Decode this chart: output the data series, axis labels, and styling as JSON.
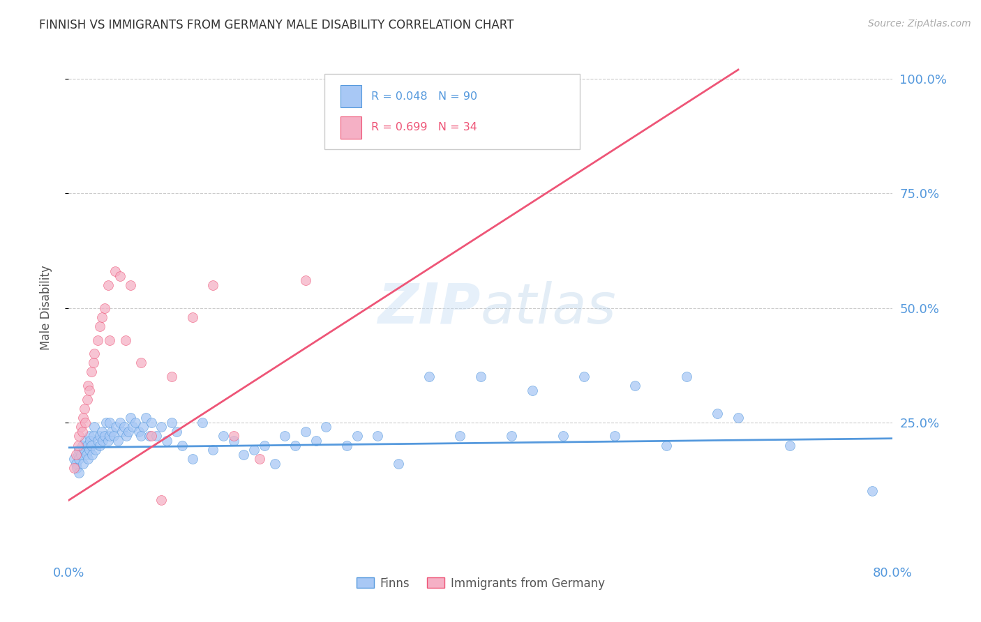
{
  "title": "FINNISH VS IMMIGRANTS FROM GERMANY MALE DISABILITY CORRELATION CHART",
  "source": "Source: ZipAtlas.com",
  "ylabel": "Male Disability",
  "watermark": "ZIPatlas",
  "finns_R": 0.048,
  "finns_N": 90,
  "germany_R": 0.699,
  "germany_N": 34,
  "xlim": [
    0.0,
    0.8
  ],
  "ylim": [
    -0.05,
    1.05
  ],
  "color_finns": "#a8c8f5",
  "color_germany": "#f5b0c5",
  "color_line_finns": "#5599dd",
  "color_line_germany": "#ee5577",
  "finns_x": [
    0.005,
    0.007,
    0.008,
    0.009,
    0.01,
    0.01,
    0.01,
    0.012,
    0.013,
    0.014,
    0.015,
    0.016,
    0.017,
    0.018,
    0.019,
    0.02,
    0.02,
    0.021,
    0.022,
    0.023,
    0.024,
    0.025,
    0.026,
    0.028,
    0.03,
    0.03,
    0.032,
    0.033,
    0.035,
    0.036,
    0.038,
    0.04,
    0.04,
    0.042,
    0.044,
    0.046,
    0.048,
    0.05,
    0.052,
    0.054,
    0.056,
    0.058,
    0.06,
    0.062,
    0.065,
    0.068,
    0.07,
    0.072,
    0.075,
    0.078,
    0.08,
    0.085,
    0.09,
    0.095,
    0.1,
    0.105,
    0.11,
    0.12,
    0.13,
    0.14,
    0.15,
    0.16,
    0.17,
    0.18,
    0.19,
    0.2,
    0.21,
    0.22,
    0.23,
    0.24,
    0.25,
    0.27,
    0.28,
    0.3,
    0.32,
    0.35,
    0.38,
    0.4,
    0.43,
    0.45,
    0.48,
    0.5,
    0.53,
    0.55,
    0.58,
    0.6,
    0.63,
    0.65,
    0.7,
    0.78
  ],
  "finns_y": [
    0.17,
    0.16,
    0.15,
    0.18,
    0.19,
    0.17,
    0.14,
    0.18,
    0.2,
    0.16,
    0.19,
    0.21,
    0.18,
    0.2,
    0.17,
    0.22,
    0.19,
    0.21,
    0.2,
    0.18,
    0.22,
    0.24,
    0.19,
    0.21,
    0.22,
    0.2,
    0.23,
    0.21,
    0.22,
    0.25,
    0.21,
    0.25,
    0.22,
    0.23,
    0.22,
    0.24,
    0.21,
    0.25,
    0.23,
    0.24,
    0.22,
    0.23,
    0.26,
    0.24,
    0.25,
    0.23,
    0.22,
    0.24,
    0.26,
    0.22,
    0.25,
    0.22,
    0.24,
    0.21,
    0.25,
    0.23,
    0.2,
    0.17,
    0.25,
    0.19,
    0.22,
    0.21,
    0.18,
    0.19,
    0.2,
    0.16,
    0.22,
    0.2,
    0.23,
    0.21,
    0.24,
    0.2,
    0.22,
    0.22,
    0.16,
    0.35,
    0.22,
    0.35,
    0.22,
    0.32,
    0.22,
    0.35,
    0.22,
    0.33,
    0.2,
    0.35,
    0.27,
    0.26,
    0.2,
    0.1
  ],
  "germany_x": [
    0.005,
    0.007,
    0.009,
    0.01,
    0.012,
    0.013,
    0.014,
    0.015,
    0.016,
    0.018,
    0.019,
    0.02,
    0.022,
    0.024,
    0.025,
    0.028,
    0.03,
    0.032,
    0.035,
    0.038,
    0.04,
    0.045,
    0.05,
    0.055,
    0.06,
    0.07,
    0.08,
    0.09,
    0.1,
    0.12,
    0.14,
    0.16,
    0.185,
    0.23
  ],
  "germany_y": [
    0.15,
    0.18,
    0.2,
    0.22,
    0.24,
    0.23,
    0.26,
    0.28,
    0.25,
    0.3,
    0.33,
    0.32,
    0.36,
    0.38,
    0.4,
    0.43,
    0.46,
    0.48,
    0.5,
    0.55,
    0.43,
    0.58,
    0.57,
    0.43,
    0.55,
    0.38,
    0.22,
    0.08,
    0.35,
    0.48,
    0.55,
    0.22,
    0.17,
    0.56
  ],
  "finns_line_x": [
    0.0,
    0.8
  ],
  "finns_line_y": [
    0.195,
    0.215
  ],
  "germany_line_x": [
    0.0,
    0.65
  ],
  "germany_line_y": [
    0.08,
    1.02
  ]
}
